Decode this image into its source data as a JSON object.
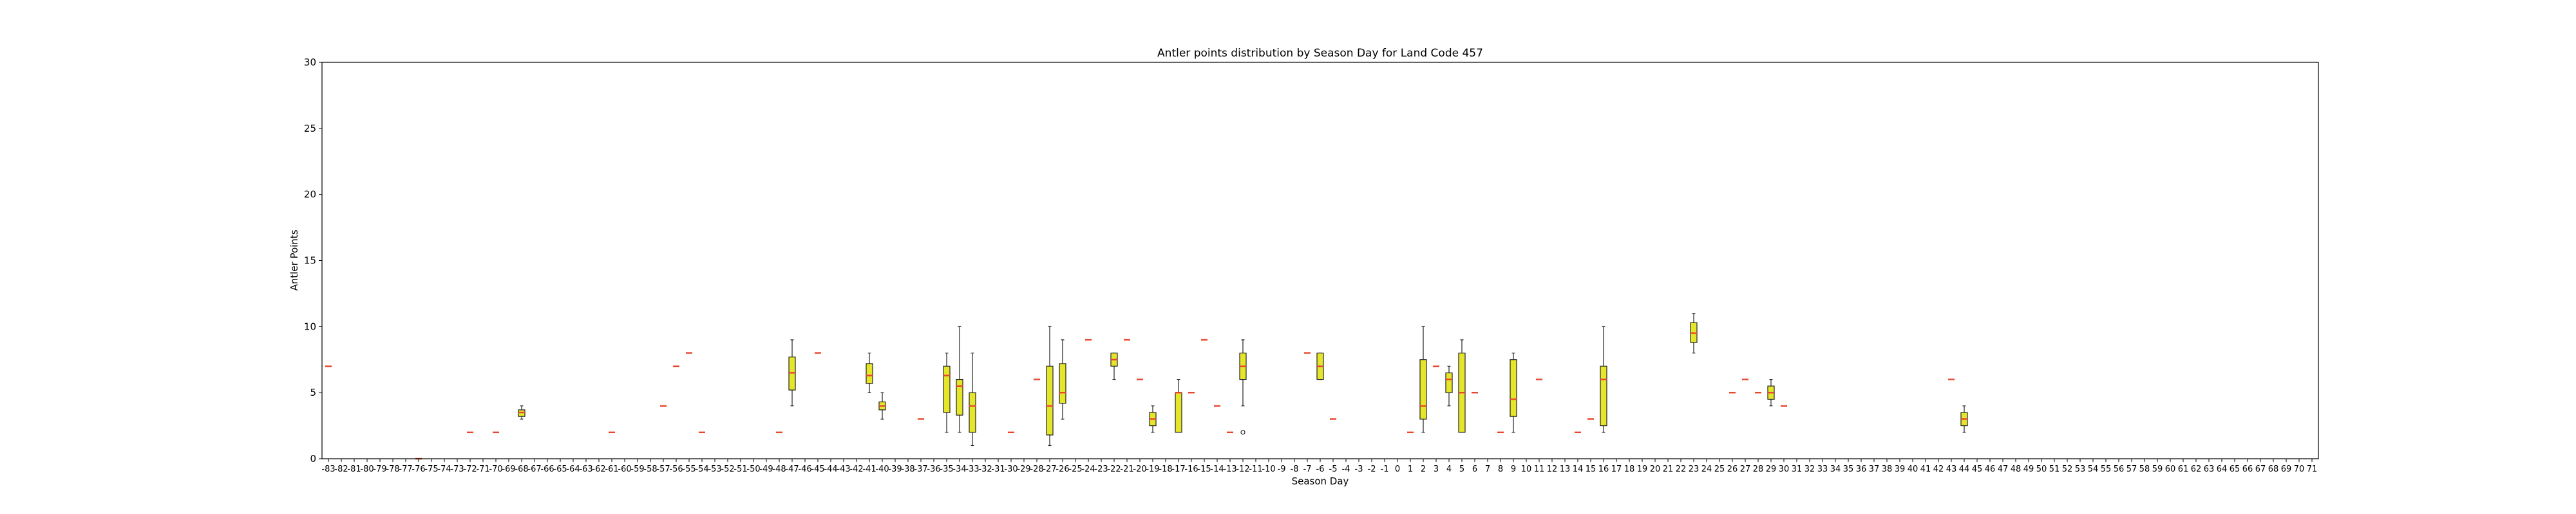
{
  "chart_data": {
    "type": "box",
    "title": "Antler points distribution by Season Day for Land Code 457",
    "xlabel": "Season Day",
    "ylabel": "Antler Points",
    "ylim": [
      0,
      30
    ],
    "yticks": [
      0,
      5,
      10,
      15,
      20,
      25,
      30
    ],
    "xrange": [
      -83,
      71
    ],
    "grid": false,
    "box_color": "#e5e52a",
    "median_color": "#e8472e",
    "boxes": [
      {
        "x": -83,
        "q1": 7,
        "median": 7,
        "q3": 7,
        "whislo": 7,
        "whishi": 7,
        "fliers": []
      },
      {
        "x": -76,
        "q1": 0,
        "median": 0,
        "q3": 0,
        "whislo": 0,
        "whishi": 0,
        "fliers": []
      },
      {
        "x": -72,
        "q1": 2,
        "median": 2,
        "q3": 2,
        "whislo": 2,
        "whishi": 2,
        "fliers": []
      },
      {
        "x": -70,
        "q1": 2,
        "median": 2,
        "q3": 2,
        "whislo": 2,
        "whishi": 2,
        "fliers": []
      },
      {
        "x": -68,
        "q1": 3.2,
        "median": 3.5,
        "q3": 3.7,
        "whislo": 3,
        "whishi": 4,
        "fliers": []
      },
      {
        "x": -61,
        "q1": 2,
        "median": 2,
        "q3": 2,
        "whislo": 2,
        "whishi": 2,
        "fliers": []
      },
      {
        "x": -57,
        "q1": 4,
        "median": 4,
        "q3": 4,
        "whislo": 4,
        "whishi": 4,
        "fliers": []
      },
      {
        "x": -56,
        "q1": 7,
        "median": 7,
        "q3": 7,
        "whislo": 7,
        "whishi": 7,
        "fliers": []
      },
      {
        "x": -55,
        "q1": 8,
        "median": 8,
        "q3": 8,
        "whislo": 8,
        "whishi": 8,
        "fliers": []
      },
      {
        "x": -54,
        "q1": 2,
        "median": 2,
        "q3": 2,
        "whislo": 2,
        "whishi": 2,
        "fliers": []
      },
      {
        "x": -48,
        "q1": 2,
        "median": 2,
        "q3": 2,
        "whislo": 2,
        "whishi": 2,
        "fliers": []
      },
      {
        "x": -47,
        "q1": 5.2,
        "median": 6.5,
        "q3": 7.7,
        "whislo": 4,
        "whishi": 9,
        "fliers": []
      },
      {
        "x": -45,
        "q1": 8,
        "median": 8,
        "q3": 8,
        "whislo": 8,
        "whishi": 8,
        "fliers": []
      },
      {
        "x": -41,
        "q1": 5.7,
        "median": 6.3,
        "q3": 7.2,
        "whislo": 5,
        "whishi": 8,
        "fliers": []
      },
      {
        "x": -40,
        "q1": 3.7,
        "median": 4,
        "q3": 4.3,
        "whislo": 3,
        "whishi": 5,
        "fliers": []
      },
      {
        "x": -37,
        "q1": 3,
        "median": 3,
        "q3": 3,
        "whislo": 3,
        "whishi": 3,
        "fliers": []
      },
      {
        "x": -35,
        "q1": 3.5,
        "median": 6.3,
        "q3": 7,
        "whislo": 2,
        "whishi": 8,
        "fliers": []
      },
      {
        "x": -34,
        "q1": 3.3,
        "median": 5.5,
        "q3": 6,
        "whislo": 2,
        "whishi": 10,
        "fliers": []
      },
      {
        "x": -33,
        "q1": 2,
        "median": 4,
        "q3": 5,
        "whislo": 1,
        "whishi": 8,
        "fliers": []
      },
      {
        "x": -30,
        "q1": 2,
        "median": 2,
        "q3": 2,
        "whislo": 2,
        "whishi": 2,
        "fliers": []
      },
      {
        "x": -28,
        "q1": 6,
        "median": 6,
        "q3": 6,
        "whislo": 6,
        "whishi": 6,
        "fliers": []
      },
      {
        "x": -27,
        "q1": 1.8,
        "median": 4,
        "q3": 7,
        "whislo": 1,
        "whishi": 10,
        "fliers": []
      },
      {
        "x": -26,
        "q1": 4.2,
        "median": 5,
        "q3": 7.2,
        "whislo": 3,
        "whishi": 9,
        "fliers": []
      },
      {
        "x": -24,
        "q1": 9,
        "median": 9,
        "q3": 9,
        "whislo": 9,
        "whishi": 9,
        "fliers": []
      },
      {
        "x": -22,
        "q1": 7,
        "median": 7.5,
        "q3": 8,
        "whislo": 6,
        "whishi": 8,
        "fliers": []
      },
      {
        "x": -21,
        "q1": 9,
        "median": 9,
        "q3": 9,
        "whislo": 9,
        "whishi": 9,
        "fliers": []
      },
      {
        "x": -20,
        "q1": 6,
        "median": 6,
        "q3": 6,
        "whislo": 6,
        "whishi": 6,
        "fliers": []
      },
      {
        "x": -19,
        "q1": 2.5,
        "median": 3,
        "q3": 3.5,
        "whislo": 2,
        "whishi": 4,
        "fliers": []
      },
      {
        "x": -17,
        "q1": 2,
        "median": 5,
        "q3": 5,
        "whislo": 2,
        "whishi": 6,
        "fliers": []
      },
      {
        "x": -16,
        "q1": 5,
        "median": 5,
        "q3": 5,
        "whislo": 5,
        "whishi": 5,
        "fliers": []
      },
      {
        "x": -15,
        "q1": 9,
        "median": 9,
        "q3": 9,
        "whislo": 9,
        "whishi": 9,
        "fliers": []
      },
      {
        "x": -14,
        "q1": 4,
        "median": 4,
        "q3": 4,
        "whislo": 4,
        "whishi": 4,
        "fliers": []
      },
      {
        "x": -13,
        "q1": 2,
        "median": 2,
        "q3": 2,
        "whislo": 2,
        "whishi": 2,
        "fliers": []
      },
      {
        "x": -12,
        "q1": 6,
        "median": 7,
        "q3": 8,
        "whislo": 4,
        "whishi": 9,
        "fliers": [
          2
        ]
      },
      {
        "x": -7,
        "q1": 8,
        "median": 8,
        "q3": 8,
        "whislo": 8,
        "whishi": 8,
        "fliers": []
      },
      {
        "x": -6,
        "q1": 6,
        "median": 7,
        "q3": 8,
        "whislo": 6,
        "whishi": 8,
        "fliers": []
      },
      {
        "x": -5,
        "q1": 3,
        "median": 3,
        "q3": 3,
        "whislo": 3,
        "whishi": 3,
        "fliers": []
      },
      {
        "x": 1,
        "q1": 2,
        "median": 2,
        "q3": 2,
        "whislo": 2,
        "whishi": 2,
        "fliers": []
      },
      {
        "x": 2,
        "q1": 3,
        "median": 4,
        "q3": 7.5,
        "whislo": 2,
        "whishi": 10,
        "fliers": []
      },
      {
        "x": 3,
        "q1": 7,
        "median": 7,
        "q3": 7,
        "whislo": 7,
        "whishi": 7,
        "fliers": []
      },
      {
        "x": 4,
        "q1": 5,
        "median": 6,
        "q3": 6.5,
        "whislo": 4,
        "whishi": 7,
        "fliers": []
      },
      {
        "x": 5,
        "q1": 2,
        "median": 5,
        "q3": 8,
        "whislo": 2,
        "whishi": 9,
        "fliers": []
      },
      {
        "x": 6,
        "q1": 5,
        "median": 5,
        "q3": 5,
        "whislo": 5,
        "whishi": 5,
        "fliers": []
      },
      {
        "x": 8,
        "q1": 2,
        "median": 2,
        "q3": 2,
        "whislo": 2,
        "whishi": 2,
        "fliers": []
      },
      {
        "x": 9,
        "q1": 3.2,
        "median": 4.5,
        "q3": 7.5,
        "whislo": 2,
        "whishi": 8,
        "fliers": []
      },
      {
        "x": 11,
        "q1": 6,
        "median": 6,
        "q3": 6,
        "whislo": 6,
        "whishi": 6,
        "fliers": []
      },
      {
        "x": 14,
        "q1": 2,
        "median": 2,
        "q3": 2,
        "whislo": 2,
        "whishi": 2,
        "fliers": []
      },
      {
        "x": 15,
        "q1": 3,
        "median": 3,
        "q3": 3,
        "whislo": 3,
        "whishi": 3,
        "fliers": []
      },
      {
        "x": 16,
        "q1": 2.5,
        "median": 6,
        "q3": 7,
        "whislo": 2,
        "whishi": 10,
        "fliers": []
      },
      {
        "x": 23,
        "q1": 8.8,
        "median": 9.5,
        "q3": 10.3,
        "whislo": 8,
        "whishi": 11,
        "fliers": []
      },
      {
        "x": 26,
        "q1": 5,
        "median": 5,
        "q3": 5,
        "whislo": 5,
        "whishi": 5,
        "fliers": []
      },
      {
        "x": 27,
        "q1": 6,
        "median": 6,
        "q3": 6,
        "whislo": 6,
        "whishi": 6,
        "fliers": []
      },
      {
        "x": 28,
        "q1": 5,
        "median": 5,
        "q3": 5,
        "whislo": 5,
        "whishi": 5,
        "fliers": []
      },
      {
        "x": 29,
        "q1": 4.5,
        "median": 5,
        "q3": 5.5,
        "whislo": 4,
        "whishi": 6,
        "fliers": []
      },
      {
        "x": 30,
        "q1": 4,
        "median": 4,
        "q3": 4,
        "whislo": 4,
        "whishi": 4,
        "fliers": []
      },
      {
        "x": 43,
        "q1": 6,
        "median": 6,
        "q3": 6,
        "whislo": 6,
        "whishi": 6,
        "fliers": []
      },
      {
        "x": 44,
        "q1": 2.5,
        "median": 3,
        "q3": 3.5,
        "whislo": 2,
        "whishi": 4,
        "fliers": []
      }
    ]
  }
}
